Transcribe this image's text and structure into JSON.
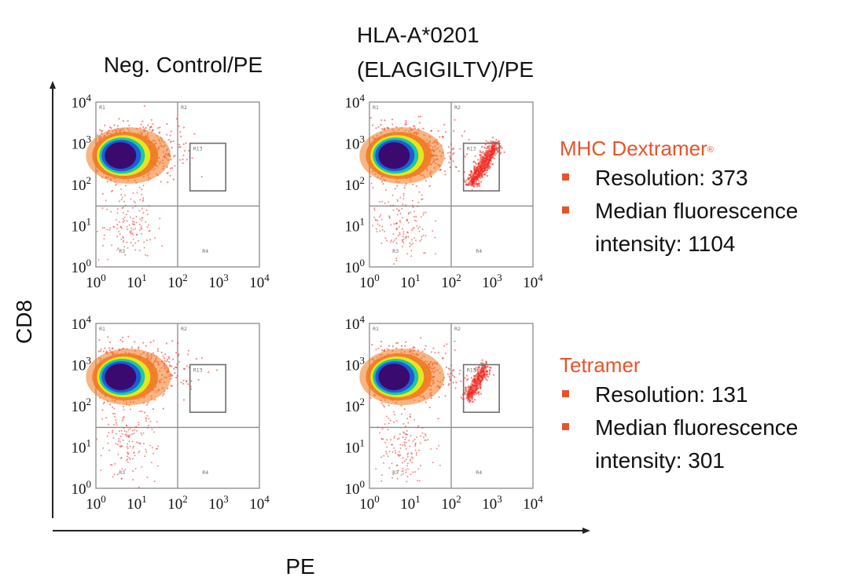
{
  "figure": {
    "y_axis_label": "CD8",
    "x_axis_label": "PE",
    "columns": [
      {
        "title_lines": [
          "Neg. Control/PE"
        ]
      },
      {
        "title_lines": [
          "HLA-A*0201",
          "(ELAGIGILTV)/PE"
        ]
      }
    ]
  },
  "chart_data": {
    "type": "scatter",
    "subtype": "flow cytometry density dot plots, 2x2 grid",
    "xlabel": "PE",
    "ylabel": "CD8",
    "x_scale": "log10",
    "y_scale": "log10",
    "xlim": [
      1,
      10000
    ],
    "ylim": [
      1,
      10000
    ],
    "tick_exponents": [
      0,
      1,
      2,
      3,
      4
    ],
    "gate_labels": [
      "R1",
      "R2",
      "R13",
      "R3",
      "R4"
    ],
    "colors": {
      "core": "#3a0a6e",
      "mid1": "#1e5bd8",
      "mid2": "#19c8a0",
      "mid3": "#e6e61e",
      "outer": "#f0791e",
      "sparse": "#ee2a22"
    },
    "panels": [
      {
        "row": "MHC Dextramer",
        "column": "Neg. Control/PE",
        "gates": {
          "quadrant_x": 100,
          "quadrant_y": 30,
          "gate_x": [
            200,
            1500
          ],
          "gate_y": [
            70,
            1000
          ]
        },
        "populations": [
          {
            "type": "main",
            "center": [
              4,
              600
            ],
            "count": 800
          },
          {
            "type": "low",
            "center": [
              6,
              12
            ],
            "count": 150
          }
        ]
      },
      {
        "row": "MHC Dextramer",
        "column": "HLA-A*0201 (ELAGIGILTV)/PE",
        "gates": {
          "quadrant_x": 100,
          "quadrant_y": 30,
          "gate_x": [
            200,
            1500
          ],
          "gate_y": [
            70,
            1000
          ]
        },
        "populations": [
          {
            "type": "main",
            "center": [
              4,
              600
            ],
            "count": 800
          },
          {
            "type": "low",
            "center": [
              6,
              12
            ],
            "count": 150
          },
          {
            "type": "positive",
            "from": [
              300,
              100
            ],
            "to": [
              1300,
              1000
            ],
            "count": 500
          }
        ]
      },
      {
        "row": "Tetramer",
        "column": "Neg. Control/PE",
        "gates": {
          "quadrant_x": 100,
          "quadrant_y": 30,
          "gate_x": [
            200,
            1500
          ],
          "gate_y": [
            70,
            1000
          ]
        },
        "populations": [
          {
            "type": "main",
            "center": [
              4,
              600
            ],
            "count": 800
          },
          {
            "type": "low",
            "center": [
              6,
              12
            ],
            "count": 150
          }
        ]
      },
      {
        "row": "Tetramer",
        "column": "HLA-A*0201 (ELAGIGILTV)/PE",
        "gates": {
          "quadrant_x": 100,
          "quadrant_y": 30,
          "gate_x": [
            200,
            1500
          ],
          "gate_y": [
            70,
            1000
          ]
        },
        "populations": [
          {
            "type": "main",
            "center": [
              4,
              600
            ],
            "count": 800
          },
          {
            "type": "low",
            "center": [
              6,
              12
            ],
            "count": 150
          },
          {
            "type": "positive",
            "from": [
              250,
              150
            ],
            "to": [
              700,
              900
            ],
            "count": 300
          }
        ]
      }
    ],
    "annotations": [
      {
        "title": "MHC Dextramer",
        "title_mark": "®",
        "resolution": 373,
        "median_fluorescence_intensity": 1104
      },
      {
        "title": "Tetramer",
        "resolution": 131,
        "median_fluorescence_intensity": 301
      }
    ]
  },
  "annotations_text": [
    {
      "title": "MHC Dextramer",
      "mark": "®",
      "resolution": "Resolution: 373",
      "mfi_line1": "Median fluorescence",
      "mfi_line2": "intensity: 1104"
    },
    {
      "title": "Tetramer",
      "mark": "",
      "resolution": "Resolution: 131",
      "mfi_line1": "Median fluorescence",
      "mfi_line2": "intensity: 301"
    }
  ]
}
